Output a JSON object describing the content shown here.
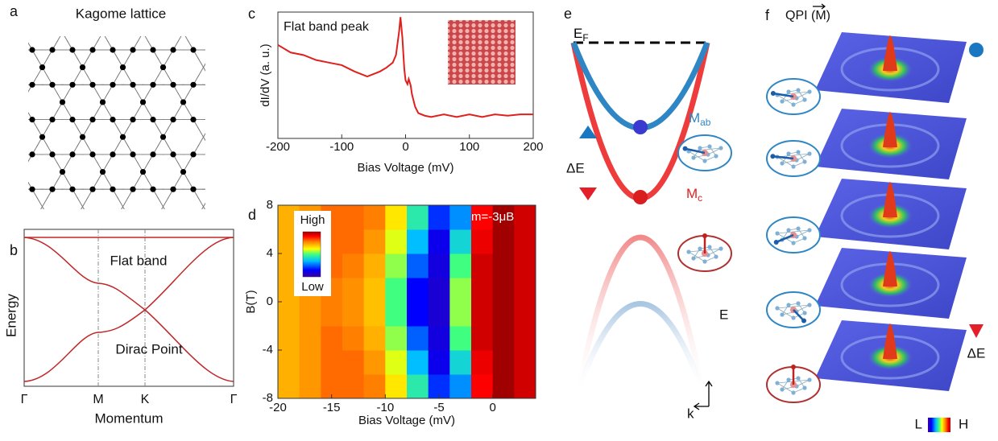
{
  "panel_labels": [
    "a",
    "b",
    "c",
    "d",
    "e",
    "f"
  ],
  "panel_a": {
    "title": "Kagome lattice"
  },
  "panel_b": {
    "x_labels": [
      "Γ",
      "M",
      "K",
      "Γ"
    ],
    "x_title": "Momentum",
    "y_title": "Energy",
    "annotations": [
      "Flat band",
      "Dirac Point"
    ]
  },
  "chart_data": [
    {
      "type": "line",
      "annotation": "Flat band peak",
      "x_title": "Bias Voltage (mV)",
      "y_title": "dI/dV (a. u.)",
      "x": [
        -200,
        -180,
        -160,
        -140,
        -120,
        -100,
        -80,
        -60,
        -40,
        -30,
        -20,
        -15,
        -10,
        -8,
        -5,
        -2,
        0,
        3,
        5,
        8,
        10,
        15,
        20,
        30,
        40,
        60,
        80,
        100,
        120,
        140,
        160,
        180,
        200
      ],
      "series": [
        {
          "color": "#e0201c",
          "values": [
            0.74,
            0.68,
            0.66,
            0.62,
            0.6,
            0.58,
            0.53,
            0.49,
            0.53,
            0.56,
            0.6,
            0.66,
            0.85,
            0.96,
            0.8,
            0.55,
            0.46,
            0.43,
            0.47,
            0.42,
            0.35,
            0.25,
            0.2,
            0.18,
            0.17,
            0.19,
            0.17,
            0.19,
            0.17,
            0.19,
            0.18,
            0.19,
            0.19
          ]
        }
      ],
      "xlim": [
        -200,
        200
      ],
      "xticks": [
        -200,
        -100,
        0,
        100,
        200
      ],
      "ylim": [
        0,
        1
      ]
    },
    {
      "type": "heatmap",
      "annotation": "m=-3μB",
      "x_title": "Bias Voltage (mV)",
      "y_title": "B(T)",
      "colorbar_labels": [
        "High",
        "Low"
      ],
      "x": [
        -19,
        -17,
        -15,
        -13,
        -11,
        -9,
        -7,
        -5,
        -3,
        -1,
        1,
        3
      ],
      "y": [
        -7,
        -5,
        -3,
        -1,
        1,
        3,
        5,
        7
      ],
      "values": [
        [
          0.72,
          0.75,
          0.8,
          0.8,
          0.78,
          0.65,
          0.45,
          0.2,
          0.3,
          0.9,
          1.0,
          0.95
        ],
        [
          0.72,
          0.75,
          0.8,
          0.8,
          0.75,
          0.6,
          0.35,
          0.12,
          0.4,
          0.92,
          1.0,
          0.95
        ],
        [
          0.72,
          0.75,
          0.8,
          0.78,
          0.72,
          0.55,
          0.25,
          0.1,
          0.5,
          0.95,
          1.0,
          0.95
        ],
        [
          0.72,
          0.75,
          0.78,
          0.76,
          0.7,
          0.5,
          0.15,
          0.08,
          0.55,
          0.95,
          1.0,
          0.95
        ],
        [
          0.72,
          0.75,
          0.78,
          0.76,
          0.7,
          0.5,
          0.15,
          0.08,
          0.55,
          0.95,
          1.0,
          0.95
        ],
        [
          0.72,
          0.75,
          0.8,
          0.78,
          0.72,
          0.55,
          0.25,
          0.1,
          0.5,
          0.95,
          1.0,
          0.95
        ],
        [
          0.72,
          0.75,
          0.8,
          0.8,
          0.75,
          0.6,
          0.35,
          0.12,
          0.4,
          0.92,
          1.0,
          0.95
        ],
        [
          0.72,
          0.75,
          0.8,
          0.8,
          0.78,
          0.65,
          0.45,
          0.2,
          0.3,
          0.9,
          1.0,
          0.95
        ]
      ],
      "xlim": [
        -20,
        4
      ],
      "xticks": [
        -20,
        -15,
        -10,
        -5,
        0
      ],
      "ylim": [
        -8,
        8
      ],
      "yticks": [
        -8,
        -4,
        0,
        4,
        8
      ]
    }
  ],
  "panel_e": {
    "fermi_level": {
      "text": "E",
      "sub": "F"
    },
    "m_ab": {
      "text": "M",
      "sub": "ab"
    },
    "m_c": {
      "text": "M",
      "sub": "c"
    },
    "delta_e": "ΔE",
    "energy_axis": "E",
    "momentum_axis": "k"
  },
  "panel_f": {
    "title": "QPI (M)",
    "delta_e": "ΔE",
    "colorbar_low": "L",
    "colorbar_high": "H"
  }
}
